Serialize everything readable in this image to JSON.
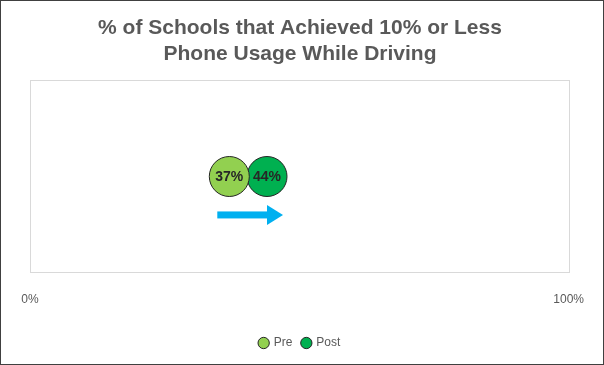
{
  "chart_data": {
    "type": "scatter",
    "title": [
      "% of Schools that Achieved 10% or Less",
      "Phone Usage While Driving"
    ],
    "series": [
      {
        "name": "Pre",
        "color": "#92d050",
        "values": [
          37
        ],
        "value_labels": [
          "37%"
        ]
      },
      {
        "name": "Post",
        "color": "#00b050",
        "values": [
          44
        ],
        "value_labels": [
          "44%"
        ]
      }
    ],
    "xlim": [
      0,
      100
    ],
    "xticks": [
      {
        "value": 0,
        "label": "0%"
      },
      {
        "value": 100,
        "label": "100%"
      }
    ],
    "grid": false,
    "legend": "bottom",
    "data_labels": true,
    "tick_labels": "x"
  }
}
